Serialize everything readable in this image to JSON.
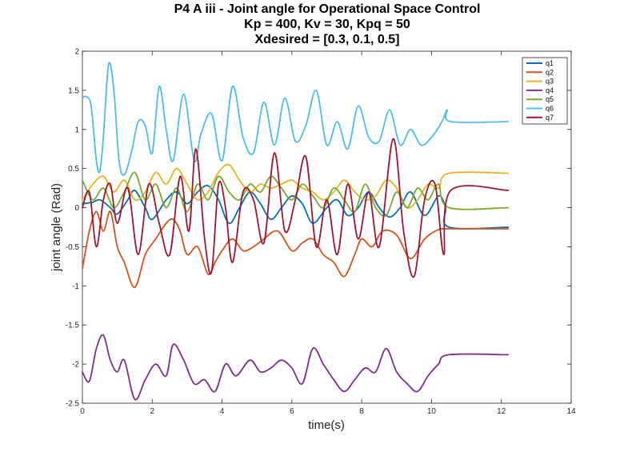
{
  "chart_data": {
    "type": "line",
    "title": [
      "P4 A iii - Joint angle for Operational Space Control",
      "Kp = 400, Kv = 30, Kpq = 50",
      "Xdesired = [0.3, 0.1, 0.5]"
    ],
    "xlabel": "time(s)",
    "ylabel": "joint angle (Rad)",
    "xlim": [
      0,
      14
    ],
    "ylim": [
      -2.5,
      2
    ],
    "xticks": [
      "0",
      "2",
      "4",
      "6",
      "8",
      "10",
      "12",
      "14"
    ],
    "yticks": [
      "2",
      "1.5",
      "1",
      "0.5",
      "0",
      "-0.5",
      "-1",
      "-1.5",
      "-2",
      "-2.5"
    ],
    "grid": false,
    "legend_position": "top-right",
    "series": [
      {
        "name": "q1",
        "color": "#0072BD",
        "points": [
          [
            0,
            0.05
          ],
          [
            0.3,
            0.07
          ],
          [
            0.5,
            0.1
          ],
          [
            0.8,
            0.0
          ],
          [
            1.0,
            -0.08
          ],
          [
            1.3,
            0.1
          ],
          [
            1.5,
            0.22
          ],
          [
            1.8,
            0.0
          ],
          [
            2.0,
            -0.15
          ],
          [
            2.4,
            0.1
          ],
          [
            2.7,
            0.2
          ],
          [
            3.0,
            0.05
          ],
          [
            3.3,
            0.2
          ],
          [
            3.6,
            0.28
          ],
          [
            3.9,
            0.1
          ],
          [
            4.2,
            -0.2
          ],
          [
            4.5,
            0.0
          ],
          [
            4.8,
            0.2
          ],
          [
            5.1,
            0.05
          ],
          [
            5.4,
            -0.15
          ],
          [
            5.7,
            0.0
          ],
          [
            6.0,
            0.15
          ],
          [
            6.3,
            0.05
          ],
          [
            6.6,
            -0.2
          ],
          [
            7.0,
            0.0
          ],
          [
            7.3,
            0.1
          ],
          [
            7.6,
            -0.1
          ],
          [
            7.9,
            0.0
          ],
          [
            8.2,
            0.2
          ],
          [
            8.5,
            0.0
          ],
          [
            8.8,
            -0.12
          ],
          [
            9.1,
            0.0
          ],
          [
            9.4,
            0.2
          ],
          [
            9.8,
            -0.1
          ],
          [
            10.2,
            0.15
          ],
          [
            10.4,
            0.0
          ],
          [
            10.5,
            -0.25
          ],
          [
            12.2,
            -0.25
          ]
        ]
      },
      {
        "name": "q2",
        "color": "#D95319",
        "points": [
          [
            0,
            -0.78
          ],
          [
            0.2,
            -0.3
          ],
          [
            0.4,
            -0.05
          ],
          [
            0.6,
            -0.3
          ],
          [
            0.8,
            -0.05
          ],
          [
            1.0,
            -0.5
          ],
          [
            1.2,
            -0.7
          ],
          [
            1.5,
            -1.02
          ],
          [
            1.8,
            -0.6
          ],
          [
            2.1,
            -0.4
          ],
          [
            2.4,
            -0.2
          ],
          [
            2.6,
            -0.15
          ],
          [
            2.8,
            -0.3
          ],
          [
            3.0,
            -0.6
          ],
          [
            3.3,
            -0.5
          ],
          [
            3.6,
            -0.85
          ],
          [
            3.8,
            -0.7
          ],
          [
            4.0,
            -0.55
          ],
          [
            4.3,
            -0.4
          ],
          [
            4.6,
            -0.55
          ],
          [
            4.9,
            -0.5
          ],
          [
            5.2,
            -0.4
          ],
          [
            5.6,
            -0.3
          ],
          [
            6.0,
            -0.55
          ],
          [
            6.3,
            -0.45
          ],
          [
            6.6,
            -0.4
          ],
          [
            6.9,
            -0.6
          ],
          [
            7.2,
            -0.7
          ],
          [
            7.5,
            -0.88
          ],
          [
            7.8,
            -0.6
          ],
          [
            8.0,
            -0.4
          ],
          [
            8.3,
            -0.5
          ],
          [
            8.6,
            -0.3
          ],
          [
            9.0,
            -0.35
          ],
          [
            9.4,
            -0.65
          ],
          [
            9.8,
            -0.4
          ],
          [
            10.2,
            -0.28
          ],
          [
            10.5,
            -0.27
          ],
          [
            12.2,
            -0.27
          ]
        ]
      },
      {
        "name": "q3",
        "color": "#EDB120",
        "points": [
          [
            0,
            0.1
          ],
          [
            0.3,
            0.3
          ],
          [
            0.6,
            0.4
          ],
          [
            0.9,
            0.2
          ],
          [
            1.2,
            0.35
          ],
          [
            1.5,
            0.1
          ],
          [
            1.8,
            0.2
          ],
          [
            2.1,
            0.45
          ],
          [
            2.4,
            0.3
          ],
          [
            2.7,
            0.5
          ],
          [
            3.0,
            0.3
          ],
          [
            3.3,
            0.1
          ],
          [
            3.6,
            0.2
          ],
          [
            3.9,
            0.45
          ],
          [
            4.2,
            0.55
          ],
          [
            4.5,
            0.35
          ],
          [
            4.8,
            0.2
          ],
          [
            5.1,
            0.3
          ],
          [
            5.4,
            0.25
          ],
          [
            5.7,
            0.3
          ],
          [
            6.0,
            0.35
          ],
          [
            6.3,
            0.25
          ],
          [
            6.6,
            0.2
          ],
          [
            6.9,
            0.1
          ],
          [
            7.2,
            0.2
          ],
          [
            7.5,
            0.35
          ],
          [
            7.8,
            0.2
          ],
          [
            8.1,
            0.1
          ],
          [
            8.4,
            0.15
          ],
          [
            8.7,
            0.35
          ],
          [
            9.0,
            0.25
          ],
          [
            9.3,
            0.0
          ],
          [
            9.6,
            0.1
          ],
          [
            9.9,
            0.3
          ],
          [
            10.2,
            0.25
          ],
          [
            10.5,
            0.44
          ],
          [
            12.2,
            0.44
          ]
        ]
      },
      {
        "name": "q4",
        "color": "#7E2F8E",
        "points": [
          [
            0,
            -2.1
          ],
          [
            0.2,
            -2.22
          ],
          [
            0.4,
            -1.8
          ],
          [
            0.6,
            -1.63
          ],
          [
            0.8,
            -1.95
          ],
          [
            1.0,
            -2.1
          ],
          [
            1.2,
            -1.95
          ],
          [
            1.5,
            -2.45
          ],
          [
            1.8,
            -2.2
          ],
          [
            2.1,
            -2.0
          ],
          [
            2.4,
            -2.15
          ],
          [
            2.6,
            -1.75
          ],
          [
            2.9,
            -1.95
          ],
          [
            3.2,
            -2.25
          ],
          [
            3.5,
            -2.2
          ],
          [
            3.8,
            -2.35
          ],
          [
            4.1,
            -2.0
          ],
          [
            4.4,
            -2.15
          ],
          [
            4.8,
            -1.95
          ],
          [
            5.1,
            -2.1
          ],
          [
            5.4,
            -2.05
          ],
          [
            5.7,
            -1.95
          ],
          [
            6.0,
            -2.05
          ],
          [
            6.3,
            -2.25
          ],
          [
            6.6,
            -1.8
          ],
          [
            6.9,
            -2.0
          ],
          [
            7.2,
            -2.2
          ],
          [
            7.5,
            -2.35
          ],
          [
            7.8,
            -2.2
          ],
          [
            8.1,
            -2.05
          ],
          [
            8.4,
            -2.1
          ],
          [
            8.7,
            -1.8
          ],
          [
            9.0,
            -2.1
          ],
          [
            9.3,
            -2.25
          ],
          [
            9.6,
            -2.35
          ],
          [
            9.9,
            -2.15
          ],
          [
            10.2,
            -2.0
          ],
          [
            10.5,
            -1.88
          ],
          [
            12.2,
            -1.88
          ]
        ]
      },
      {
        "name": "q5",
        "color": "#77AC30",
        "points": [
          [
            0,
            0.35
          ],
          [
            0.3,
            0.1
          ],
          [
            0.6,
            0.25
          ],
          [
            0.9,
            0.0
          ],
          [
            1.2,
            0.2
          ],
          [
            1.5,
            0.45
          ],
          [
            1.8,
            0.1
          ],
          [
            2.1,
            0.3
          ],
          [
            2.4,
            0.0
          ],
          [
            2.7,
            0.25
          ],
          [
            3.0,
            -0.05
          ],
          [
            3.3,
            0.3
          ],
          [
            3.6,
            0.1
          ],
          [
            3.9,
            0.4
          ],
          [
            4.2,
            0.2
          ],
          [
            4.5,
            0.1
          ],
          [
            4.8,
            0.3
          ],
          [
            5.1,
            0.2
          ],
          [
            5.4,
            0.4
          ],
          [
            5.7,
            0.25
          ],
          [
            6.0,
            0.1
          ],
          [
            6.3,
            0.3
          ],
          [
            6.6,
            0.15
          ],
          [
            6.9,
            0.0
          ],
          [
            7.2,
            0.25
          ],
          [
            7.5,
            0.1
          ],
          [
            7.8,
            -0.05
          ],
          [
            8.1,
            0.3
          ],
          [
            8.4,
            0.0
          ],
          [
            8.7,
            -0.1
          ],
          [
            9.0,
            0.2
          ],
          [
            9.3,
            0.0
          ],
          [
            9.6,
            0.25
          ],
          [
            9.9,
            0.1
          ],
          [
            10.2,
            0.3
          ],
          [
            10.5,
            0.0
          ],
          [
            12.2,
            0.0
          ]
        ]
      },
      {
        "name": "q6",
        "color": "#4DBEEE",
        "points": [
          [
            0,
            1.4
          ],
          [
            0.1,
            1.42
          ],
          [
            0.25,
            1.3
          ],
          [
            0.4,
            0.6
          ],
          [
            0.5,
            0.47
          ],
          [
            0.6,
            0.9
          ],
          [
            0.75,
            1.83
          ],
          [
            0.9,
            1.5
          ],
          [
            1.05,
            0.6
          ],
          [
            1.2,
            0.42
          ],
          [
            1.4,
            0.7
          ],
          [
            1.6,
            1.1
          ],
          [
            1.8,
            1.05
          ],
          [
            2.0,
            0.7
          ],
          [
            2.2,
            1.55
          ],
          [
            2.4,
            1.0
          ],
          [
            2.6,
            0.6
          ],
          [
            2.9,
            1.45
          ],
          [
            3.2,
            0.6
          ],
          [
            3.4,
            0.95
          ],
          [
            3.7,
            1.2
          ],
          [
            4.0,
            0.6
          ],
          [
            4.3,
            1.55
          ],
          [
            4.6,
            0.9
          ],
          [
            4.9,
            0.7
          ],
          [
            5.2,
            1.35
          ],
          [
            5.5,
            0.8
          ],
          [
            5.8,
            1.4
          ],
          [
            6.1,
            0.85
          ],
          [
            6.4,
            1.05
          ],
          [
            6.7,
            1.5
          ],
          [
            7.0,
            0.8
          ],
          [
            7.3,
            1.1
          ],
          [
            7.6,
            0.75
          ],
          [
            7.9,
            1.3
          ],
          [
            8.2,
            0.9
          ],
          [
            8.5,
            0.85
          ],
          [
            8.8,
            1.25
          ],
          [
            9.1,
            0.8
          ],
          [
            9.4,
            1.0
          ],
          [
            9.7,
            0.8
          ],
          [
            10.0,
            0.9
          ],
          [
            10.3,
            1.1
          ],
          [
            10.45,
            1.25
          ],
          [
            10.55,
            1.1
          ],
          [
            12.2,
            1.1
          ]
        ]
      },
      {
        "name": "q7",
        "color": "#A2142F",
        "points": [
          [
            0,
            0.0
          ],
          [
            0.2,
            0.2
          ],
          [
            0.4,
            -0.5
          ],
          [
            0.6,
            0.1
          ],
          [
            0.8,
            0.3
          ],
          [
            1.0,
            -0.2
          ],
          [
            1.3,
            0.25
          ],
          [
            1.6,
            -0.6
          ],
          [
            1.9,
            0.3
          ],
          [
            2.2,
            -0.2
          ],
          [
            2.5,
            -0.6
          ],
          [
            2.8,
            0.4
          ],
          [
            3.05,
            -0.3
          ],
          [
            3.25,
            0.75
          ],
          [
            3.5,
            -0.4
          ],
          [
            3.7,
            -0.82
          ],
          [
            3.9,
            0.3
          ],
          [
            4.1,
            0.0
          ],
          [
            4.3,
            -0.7
          ],
          [
            4.6,
            0.2
          ],
          [
            4.9,
            0.1
          ],
          [
            5.2,
            -0.45
          ],
          [
            5.5,
            0.7
          ],
          [
            5.8,
            -0.3
          ],
          [
            6.1,
            0.1
          ],
          [
            6.4,
            0.65
          ],
          [
            6.7,
            -0.5
          ],
          [
            7.0,
            0.1
          ],
          [
            7.3,
            -0.6
          ],
          [
            7.6,
            0.3
          ],
          [
            7.9,
            -0.4
          ],
          [
            8.2,
            0.2
          ],
          [
            8.5,
            -0.5
          ],
          [
            8.9,
            0.88
          ],
          [
            9.2,
            -0.3
          ],
          [
            9.5,
            -0.88
          ],
          [
            9.8,
            0.1
          ],
          [
            10.1,
            0.3
          ],
          [
            10.35,
            -0.6
          ],
          [
            10.55,
            0.22
          ],
          [
            12.2,
            0.22
          ]
        ]
      }
    ]
  }
}
